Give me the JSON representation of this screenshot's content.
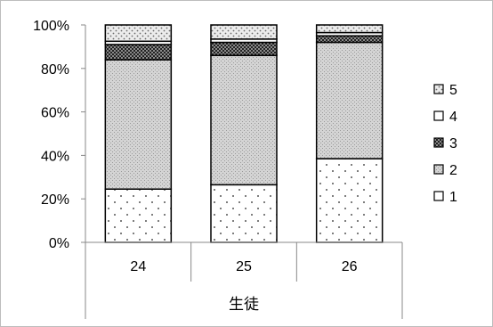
{
  "chart_data": {
    "type": "bar",
    "stacked": true,
    "percent": true,
    "categories": [
      "24",
      "25",
      "26"
    ],
    "x_group_label": "生徒",
    "y_ticks": [
      "0%",
      "20%",
      "40%",
      "60%",
      "80%",
      "100%"
    ],
    "ylim": [
      0,
      100
    ],
    "legend_position": "right",
    "series": [
      {
        "name": "1",
        "values": [
          24.5,
          26.5,
          38.5
        ]
      },
      {
        "name": "2",
        "values": [
          59.5,
          59.5,
          53.5
        ]
      },
      {
        "name": "3",
        "values": [
          7.0,
          6.0,
          3.0
        ]
      },
      {
        "name": "4",
        "values": [
          1.5,
          1.5,
          1.5
        ]
      },
      {
        "name": "5",
        "values": [
          7.5,
          6.5,
          3.5
        ]
      }
    ]
  }
}
